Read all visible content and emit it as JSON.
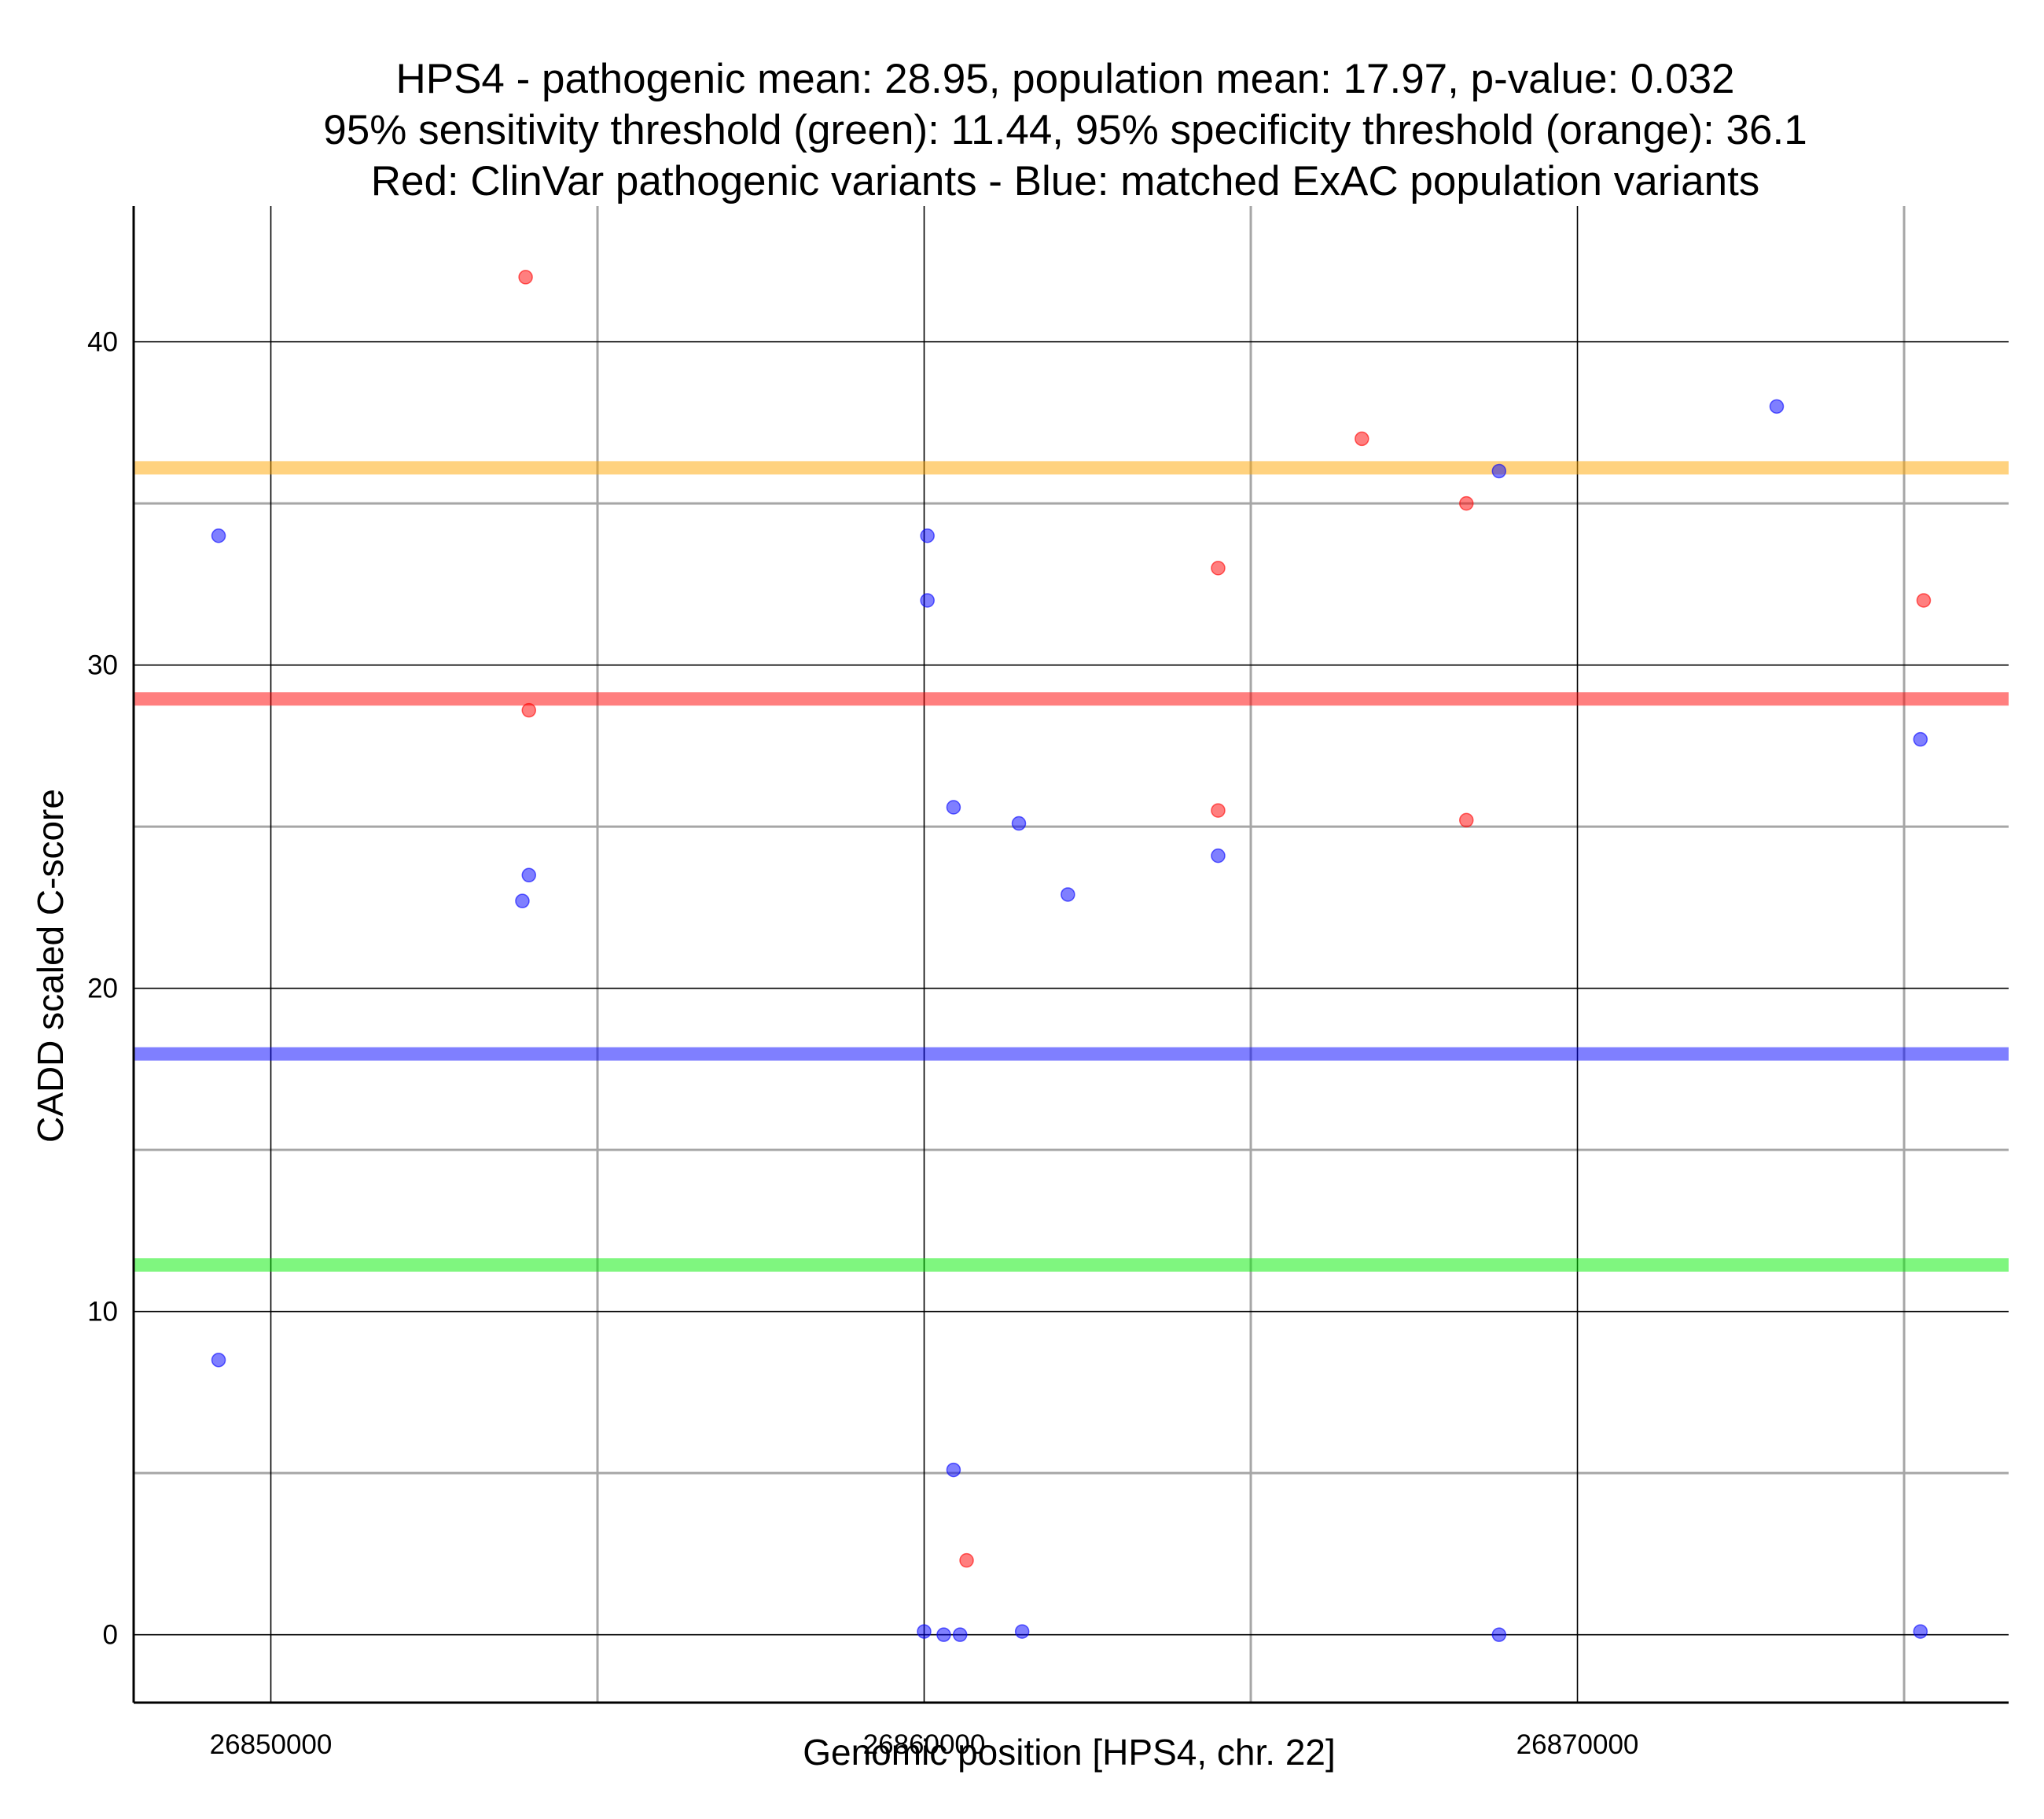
{
  "chart_data": {
    "type": "scatter",
    "title_lines": [
      "HPS4 - pathogenic mean: 28.95, population mean: 17.97, p-value: 0.032",
      "95% sensitivity threshold (green): 11.44, 95% specificity threshold (orange): 36.1",
      "Red: ClinVar pathogenic variants - Blue: matched ExAC population variants"
    ],
    "xlabel": "Genomic position [HPS4, chr. 22]",
    "ylabel": "CADD scaled C-score",
    "xlim": [
      26847900,
      26876600
    ],
    "ylim": [
      -2.1,
      44.2
    ],
    "x_major_ticks": [
      26850000,
      26860000,
      26870000
    ],
    "x_tick_labels": [
      "26850000",
      "26860000",
      "26870000"
    ],
    "x_minor_ticks": [
      26855000,
      26865000,
      26875000
    ],
    "y_major_ticks": [
      0,
      10,
      20,
      30,
      40
    ],
    "y_tick_labels": [
      "0",
      "10",
      "20",
      "30",
      "40"
    ],
    "y_minor_ticks": [
      5,
      15,
      25,
      35
    ],
    "grid": true,
    "point_colors": {
      "pathogenic": "#ff0000",
      "population": "#0000ff"
    },
    "series": [
      {
        "key": "pathogenic",
        "color": "#ff0000",
        "points": [
          {
            "x": 26853900,
            "y": 42.0
          },
          {
            "x": 26853950,
            "y": 28.6
          },
          {
            "x": 26860650,
            "y": 2.3
          },
          {
            "x": 26864500,
            "y": 33.0
          },
          {
            "x": 26864500,
            "y": 25.5
          },
          {
            "x": 26866700,
            "y": 37.0
          },
          {
            "x": 26868300,
            "y": 35.0
          },
          {
            "x": 26868300,
            "y": 25.2
          },
          {
            "x": 26875300,
            "y": 32.0
          }
        ]
      },
      {
        "key": "population",
        "color": "#0000ff",
        "points": [
          {
            "x": 26849200,
            "y": 34.0
          },
          {
            "x": 26849200,
            "y": 8.5
          },
          {
            "x": 26853850,
            "y": 22.7
          },
          {
            "x": 26853950,
            "y": 23.5
          },
          {
            "x": 26860050,
            "y": 34.0
          },
          {
            "x": 26860050,
            "y": 32.0
          },
          {
            "x": 26860000,
            "y": 0.1
          },
          {
            "x": 26860300,
            "y": 0.0
          },
          {
            "x": 26860550,
            "y": 0.0
          },
          {
            "x": 26860450,
            "y": 25.6
          },
          {
            "x": 26860450,
            "y": 5.1
          },
          {
            "x": 26861450,
            "y": 25.1
          },
          {
            "x": 26861500,
            "y": 0.1
          },
          {
            "x": 26862200,
            "y": 22.9
          },
          {
            "x": 26864500,
            "y": 24.1
          },
          {
            "x": 26868800,
            "y": 36.0
          },
          {
            "x": 26868800,
            "y": 0.0
          },
          {
            "x": 26873050,
            "y": 38.0
          },
          {
            "x": 26875250,
            "y": 27.7
          },
          {
            "x": 26875250,
            "y": 0.1
          }
        ]
      }
    ],
    "reference_lines": [
      {
        "key": "specificity_threshold",
        "y": 36.1,
        "color": "#ffa500"
      },
      {
        "key": "pathogenic_mean",
        "y": 28.95,
        "color": "#ff0000"
      },
      {
        "key": "population_mean",
        "y": 17.97,
        "color": "#0000ff"
      },
      {
        "key": "sensitivity_threshold",
        "y": 11.44,
        "color": "#00ee00"
      }
    ]
  }
}
